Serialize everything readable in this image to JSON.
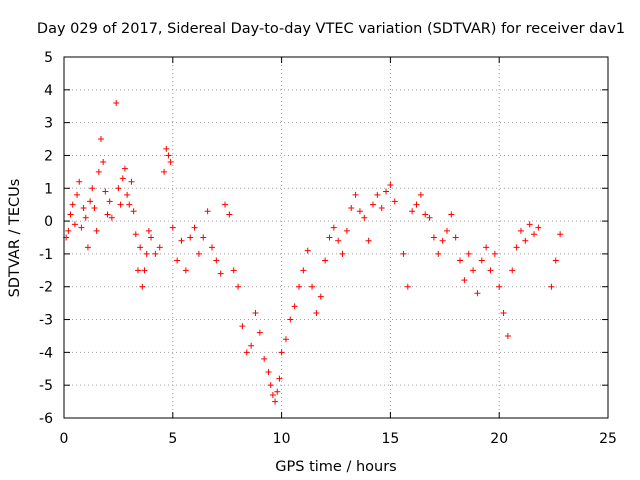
{
  "chart_data": {
    "type": "scatter",
    "title": "Day 029 of 2017, Sidereal Day-to-day VTEC variation (SDTVAR) for receiver dav1",
    "xlabel": "GPS time / hours",
    "ylabel": "SDTVAR / TECUs",
    "xlim": [
      0,
      25
    ],
    "ylim": [
      -6,
      5
    ],
    "xticks": [
      "0",
      "5",
      "10",
      "15",
      "20",
      "25"
    ],
    "yticks": [
      "-6",
      "-5",
      "-4",
      "-3",
      "-2",
      "-1",
      "0",
      "1",
      "2",
      "3",
      "4",
      "5"
    ],
    "grid": true,
    "marker": "plus",
    "marker_color": "#ff0000",
    "series": [
      {
        "name": "dav1",
        "x": [
          0.1,
          0.2,
          0.3,
          0.4,
          0.5,
          0.6,
          0.7,
          0.8,
          0.9,
          1.0,
          1.1,
          1.2,
          1.3,
          1.4,
          1.5,
          1.6,
          1.7,
          1.8,
          1.9,
          2.0,
          2.1,
          2.2,
          2.4,
          2.5,
          2.6,
          2.7,
          2.8,
          2.9,
          3.0,
          3.1,
          3.2,
          3.3,
          3.4,
          3.5,
          3.6,
          3.7,
          3.8,
          3.9,
          4.0,
          4.2,
          4.4,
          4.6,
          4.7,
          4.8,
          4.9,
          5.0,
          5.2,
          5.4,
          5.6,
          5.8,
          6.0,
          6.2,
          6.4,
          6.6,
          6.8,
          7.0,
          7.2,
          7.4,
          7.6,
          7.8,
          8.0,
          8.2,
          8.4,
          8.6,
          8.8,
          9.0,
          9.2,
          9.4,
          9.5,
          9.6,
          9.7,
          9.8,
          9.9,
          10.0,
          10.2,
          10.4,
          10.6,
          10.8,
          11.0,
          11.2,
          11.4,
          11.6,
          11.8,
          12.0,
          12.2,
          12.4,
          12.6,
          12.8,
          13.0,
          13.2,
          13.4,
          13.6,
          13.8,
          14.0,
          14.2,
          14.4,
          14.6,
          14.8,
          15.0,
          15.2,
          15.6,
          15.8,
          16.0,
          16.2,
          16.4,
          16.6,
          16.8,
          17.0,
          17.2,
          17.4,
          17.6,
          17.8,
          18.0,
          18.2,
          18.4,
          18.6,
          18.8,
          19.0,
          19.2,
          19.4,
          19.6,
          19.8,
          20.0,
          20.2,
          20.4,
          20.6,
          20.8,
          21.0,
          21.2,
          21.4,
          21.6,
          21.8,
          22.4,
          22.6,
          22.8
        ],
        "y": [
          -0.5,
          -0.3,
          0.2,
          0.5,
          -0.1,
          0.8,
          1.2,
          -0.2,
          0.4,
          0.1,
          -0.8,
          0.6,
          1.0,
          0.4,
          -0.3,
          1.5,
          2.5,
          1.8,
          0.9,
          0.2,
          0.6,
          0.1,
          3.6,
          1.0,
          0.5,
          1.3,
          1.6,
          0.8,
          0.5,
          1.2,
          0.3,
          -0.4,
          -1.5,
          -0.8,
          -2.0,
          -1.5,
          -1.0,
          -0.3,
          -0.5,
          -1.0,
          -0.8,
          1.5,
          2.2,
          2.0,
          1.8,
          -0.2,
          -1.2,
          -0.6,
          -1.5,
          -0.5,
          -0.2,
          -1.0,
          -0.5,
          0.3,
          -0.8,
          -1.2,
          -1.6,
          0.5,
          0.2,
          -1.5,
          -2.0,
          -3.2,
          -4.0,
          -3.8,
          -2.8,
          -3.4,
          -4.2,
          -4.6,
          -5.0,
          -5.3,
          -5.5,
          -5.2,
          -4.8,
          -4.0,
          -3.6,
          -3.0,
          -2.6,
          -2.0,
          -1.5,
          -0.9,
          -2.0,
          -2.8,
          -2.3,
          -1.2,
          -0.5,
          -0.2,
          -0.6,
          -1.0,
          -0.3,
          0.4,
          0.8,
          0.3,
          0.1,
          -0.6,
          0.5,
          0.8,
          0.4,
          0.9,
          1.1,
          0.6,
          -1.0,
          -2.0,
          0.3,
          0.5,
          0.8,
          0.2,
          0.1,
          -0.5,
          -1.0,
          -0.6,
          -0.3,
          0.2,
          -0.5,
          -1.2,
          -1.8,
          -1.0,
          -1.5,
          -2.2,
          -1.2,
          -0.8,
          -1.5,
          -1.0,
          -2.0,
          -2.8,
          -3.5,
          -1.5,
          -0.8,
          -0.3,
          -0.6,
          -0.1,
          -0.4,
          -0.2,
          -2.0,
          -1.2,
          -0.4
        ]
      }
    ]
  }
}
